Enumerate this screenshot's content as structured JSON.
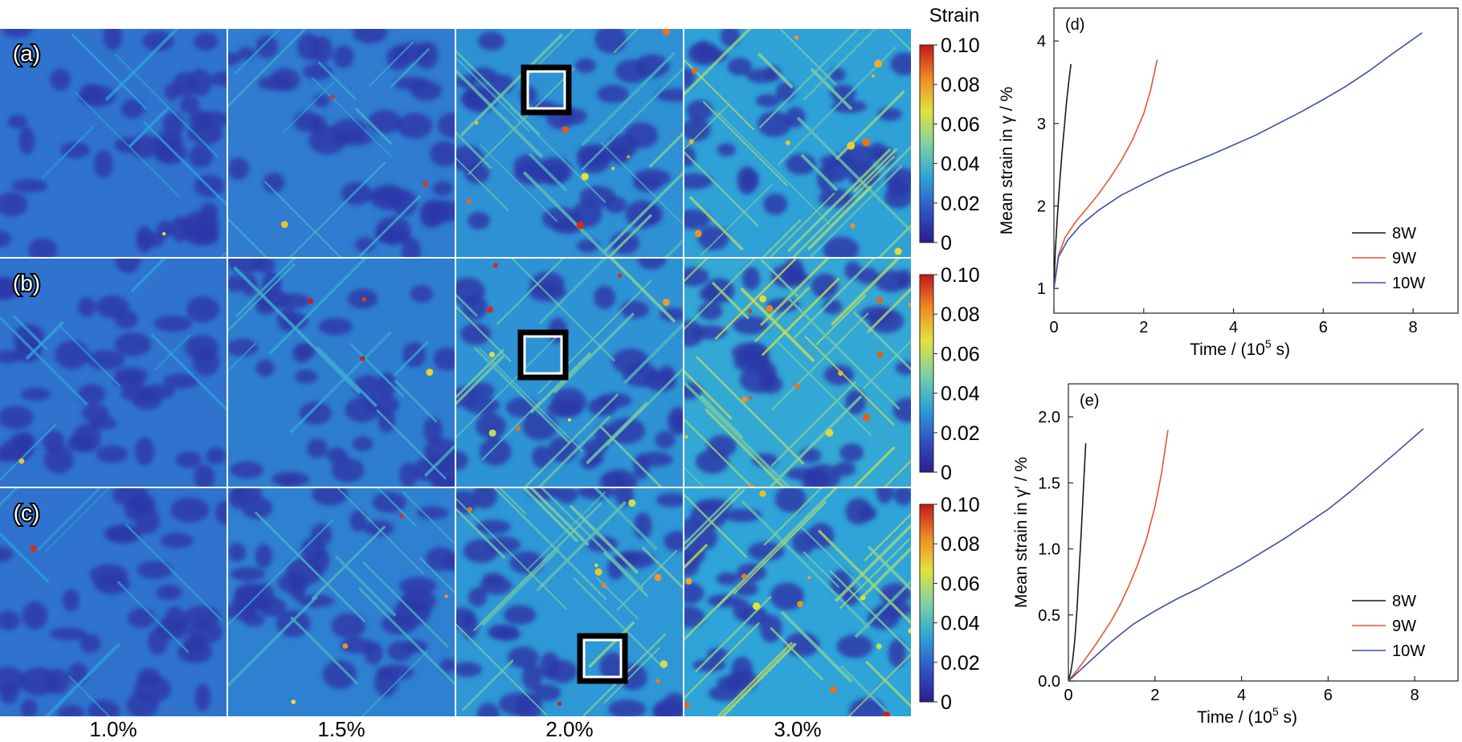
{
  "colormap": {
    "title": "Strain",
    "ticks": [
      "0.10",
      "0.08",
      "0.06",
      "0.04",
      "0.02",
      "0"
    ],
    "colors": [
      "#2b1e8c",
      "#2f55c8",
      "#2ea5d8",
      "#7fd2a0",
      "#e3e23a",
      "#f08a24",
      "#c4161c"
    ]
  },
  "maps": {
    "row_labels": [
      "(a)",
      "(b)",
      "(c)"
    ],
    "col_labels": [
      "1.0%",
      "1.5%",
      "2.0%",
      "3.0%"
    ],
    "levels": [
      [
        0.05,
        0.14,
        0.36,
        0.52
      ],
      [
        0.05,
        0.16,
        0.38,
        0.62
      ],
      [
        0.05,
        0.18,
        0.42,
        0.56
      ]
    ]
  },
  "chart_data": [
    {
      "type": "line",
      "panel_label": "(d)",
      "xlabel": "Time / (10",
      "xlabel_sup": "5",
      "xlabel_end": " s)",
      "ylabel": "Mean strain in γ / %",
      "xlim": [
        0,
        9
      ],
      "ylim": [
        0.7,
        4.4
      ],
      "xticks": [
        "0",
        "2",
        "4",
        "6",
        "8"
      ],
      "yticks": [
        "1",
        "2",
        "3",
        "4"
      ],
      "legend_position": "bottom-right",
      "series": [
        {
          "name": "8W",
          "color": "#1a1a1a",
          "x": [
            0,
            0.03,
            0.08,
            0.13,
            0.18,
            0.23,
            0.28,
            0.33,
            0.38
          ],
          "y": [
            1.0,
            1.45,
            1.9,
            2.3,
            2.65,
            2.95,
            3.25,
            3.5,
            3.72
          ]
        },
        {
          "name": "9W",
          "color": "#e8552f",
          "x": [
            0,
            0.1,
            0.25,
            0.5,
            0.75,
            1.0,
            1.25,
            1.5,
            1.75,
            2.0,
            2.15,
            2.3
          ],
          "y": [
            1.0,
            1.4,
            1.62,
            1.82,
            1.98,
            2.15,
            2.34,
            2.55,
            2.8,
            3.12,
            3.4,
            3.77
          ]
        },
        {
          "name": "10W",
          "color": "#3b4fa6",
          "x": [
            0,
            0.1,
            0.3,
            0.6,
            1.0,
            1.5,
            2.0,
            2.5,
            3.0,
            3.5,
            4.0,
            4.5,
            5.0,
            5.5,
            6.0,
            6.5,
            7.0,
            7.5,
            8.2
          ],
          "y": [
            1.0,
            1.38,
            1.58,
            1.77,
            1.95,
            2.13,
            2.27,
            2.4,
            2.51,
            2.62,
            2.74,
            2.86,
            3.0,
            3.14,
            3.29,
            3.45,
            3.63,
            3.83,
            4.1
          ]
        }
      ]
    },
    {
      "type": "line",
      "panel_label": "(e)",
      "xlabel": "Time / (10",
      "xlabel_sup": "5",
      "xlabel_end": " s)",
      "ylabel": "Mean strain in γ′ / %",
      "xlim": [
        0,
        9
      ],
      "ylim": [
        0,
        2.25
      ],
      "xticks": [
        "0",
        "2",
        "4",
        "6",
        "8"
      ],
      "yticks": [
        "0.0",
        "0.5",
        "1.0",
        "1.5",
        "2.0"
      ],
      "legend_position": "bottom-right",
      "series": [
        {
          "name": "8W",
          "color": "#1a1a1a",
          "x": [
            0,
            0.05,
            0.1,
            0.15,
            0.2,
            0.25,
            0.3,
            0.35,
            0.4
          ],
          "y": [
            0.0,
            0.06,
            0.16,
            0.32,
            0.55,
            0.85,
            1.15,
            1.48,
            1.8
          ]
        },
        {
          "name": "9W",
          "color": "#e8552f",
          "x": [
            0,
            0.2,
            0.4,
            0.6,
            0.8,
            1.0,
            1.2,
            1.4,
            1.6,
            1.8,
            2.0,
            2.15,
            2.3
          ],
          "y": [
            0.0,
            0.08,
            0.17,
            0.26,
            0.36,
            0.46,
            0.58,
            0.72,
            0.88,
            1.07,
            1.32,
            1.57,
            1.9
          ]
        },
        {
          "name": "10W",
          "color": "#3b4fa6",
          "x": [
            0,
            0.2,
            0.5,
            1.0,
            1.5,
            2.0,
            2.5,
            3.0,
            3.5,
            4.0,
            4.5,
            5.0,
            5.5,
            6.0,
            6.5,
            7.0,
            7.5,
            8.2
          ],
          "y": [
            0.0,
            0.06,
            0.15,
            0.3,
            0.43,
            0.53,
            0.62,
            0.7,
            0.79,
            0.88,
            0.98,
            1.08,
            1.19,
            1.3,
            1.43,
            1.57,
            1.71,
            1.91
          ]
        }
      ]
    }
  ]
}
